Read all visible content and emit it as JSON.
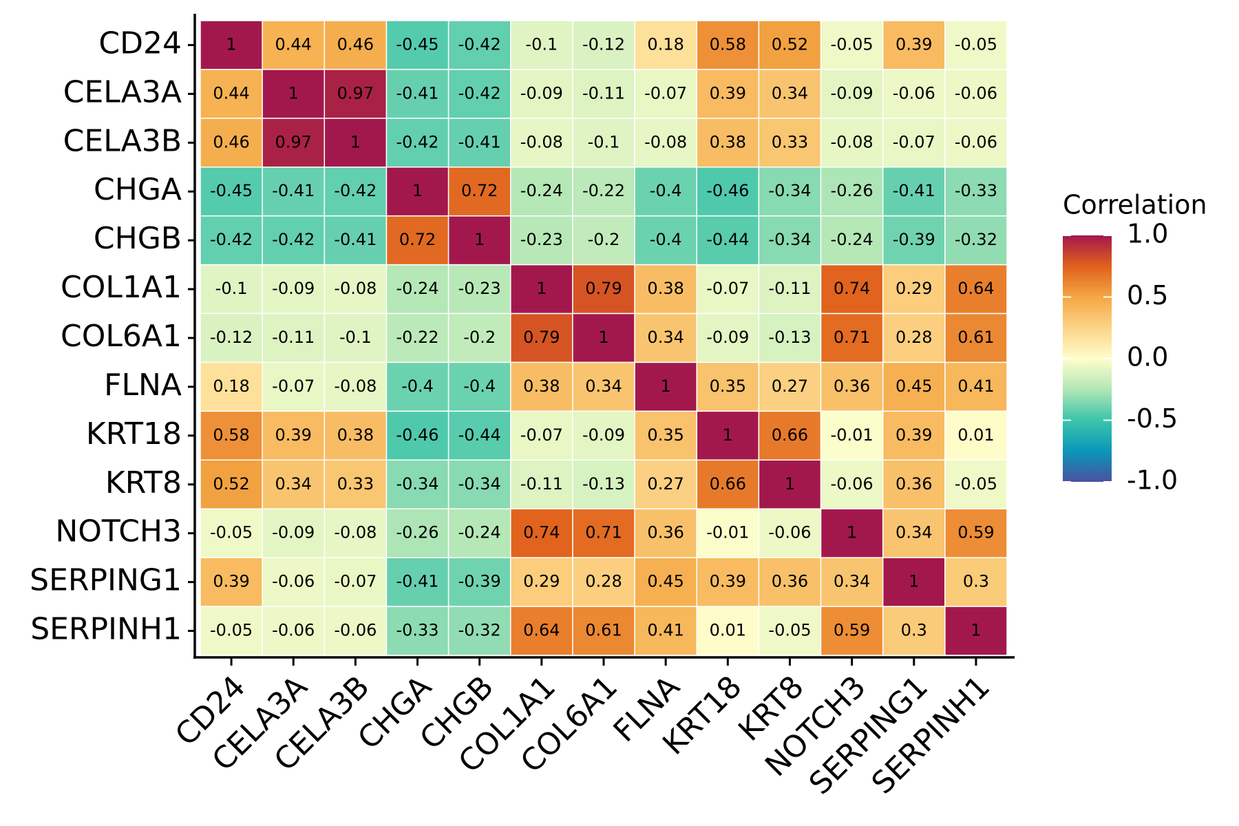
{
  "chart_data": {
    "type": "heatmap",
    "x_labels": [
      "CD24",
      "CELA3A",
      "CELA3B",
      "CHGA",
      "CHGB",
      "COL1A1",
      "COL6A1",
      "FLNA",
      "KRT18",
      "KRT8",
      "NOTCH3",
      "SERPING1",
      "SERPINH1"
    ],
    "y_labels": [
      "CD24",
      "CELA3A",
      "CELA3B",
      "CHGA",
      "CHGB",
      "COL1A1",
      "COL6A1",
      "FLNA",
      "KRT18",
      "KRT8",
      "NOTCH3",
      "SERPING1",
      "SERPINH1"
    ],
    "values": [
      [
        1,
        0.44,
        0.46,
        -0.45,
        -0.42,
        -0.1,
        -0.12,
        0.18,
        0.58,
        0.52,
        -0.05,
        0.39,
        -0.05
      ],
      [
        0.44,
        1,
        0.97,
        -0.41,
        -0.42,
        -0.09,
        -0.11,
        -0.07,
        0.39,
        0.34,
        -0.09,
        -0.06,
        -0.06
      ],
      [
        0.46,
        0.97,
        1,
        -0.42,
        -0.41,
        -0.08,
        -0.1,
        -0.08,
        0.38,
        0.33,
        -0.08,
        -0.07,
        -0.06
      ],
      [
        -0.45,
        -0.41,
        -0.42,
        1,
        0.72,
        -0.24,
        -0.22,
        -0.4,
        -0.46,
        -0.34,
        -0.26,
        -0.41,
        -0.33
      ],
      [
        -0.42,
        -0.42,
        -0.41,
        0.72,
        1,
        -0.23,
        -0.2,
        -0.4,
        -0.44,
        -0.34,
        -0.24,
        -0.39,
        -0.32
      ],
      [
        -0.1,
        -0.09,
        -0.08,
        -0.24,
        -0.23,
        1,
        0.79,
        0.38,
        -0.07,
        -0.11,
        0.74,
        0.29,
        0.64
      ],
      [
        -0.12,
        -0.11,
        -0.1,
        -0.22,
        -0.2,
        0.79,
        1,
        0.34,
        -0.09,
        -0.13,
        0.71,
        0.28,
        0.61
      ],
      [
        0.18,
        -0.07,
        -0.08,
        -0.4,
        -0.4,
        0.38,
        0.34,
        1,
        0.35,
        0.27,
        0.36,
        0.45,
        0.41
      ],
      [
        0.58,
        0.39,
        0.38,
        -0.46,
        -0.44,
        -0.07,
        -0.09,
        0.35,
        1,
        0.66,
        -0.01,
        0.39,
        0.01
      ],
      [
        0.52,
        0.34,
        0.33,
        -0.34,
        -0.34,
        -0.11,
        -0.13,
        0.27,
        0.66,
        1,
        -0.06,
        0.36,
        -0.05
      ],
      [
        -0.05,
        -0.09,
        -0.08,
        -0.26,
        -0.24,
        0.74,
        0.71,
        0.36,
        -0.01,
        -0.06,
        1,
        0.34,
        0.59
      ],
      [
        0.39,
        -0.06,
        -0.07,
        -0.41,
        -0.39,
        0.29,
        0.28,
        0.45,
        0.39,
        0.36,
        0.34,
        1,
        0.3
      ],
      [
        -0.05,
        -0.06,
        -0.06,
        -0.33,
        -0.32,
        0.64,
        0.61,
        0.41,
        0.01,
        -0.05,
        0.59,
        0.3,
        1
      ]
    ],
    "legend_title": "Correlation",
    "zlim": [
      -1,
      1
    ],
    "zticks": [
      {
        "value": 1,
        "label": "1.0"
      },
      {
        "value": 0.5,
        "label": "0.5"
      },
      {
        "value": 0,
        "label": "0.0"
      },
      {
        "value": -0.5,
        "label": "-0.5"
      },
      {
        "value": -1,
        "label": "-1.0"
      }
    ],
    "colors": [
      "#4a52a0",
      "#0a97b8",
      "#3cc4aa",
      "#b2e6b6",
      "#fefecb",
      "#fcd487",
      "#f4a743",
      "#e0601c",
      "#a3184c"
    ]
  }
}
